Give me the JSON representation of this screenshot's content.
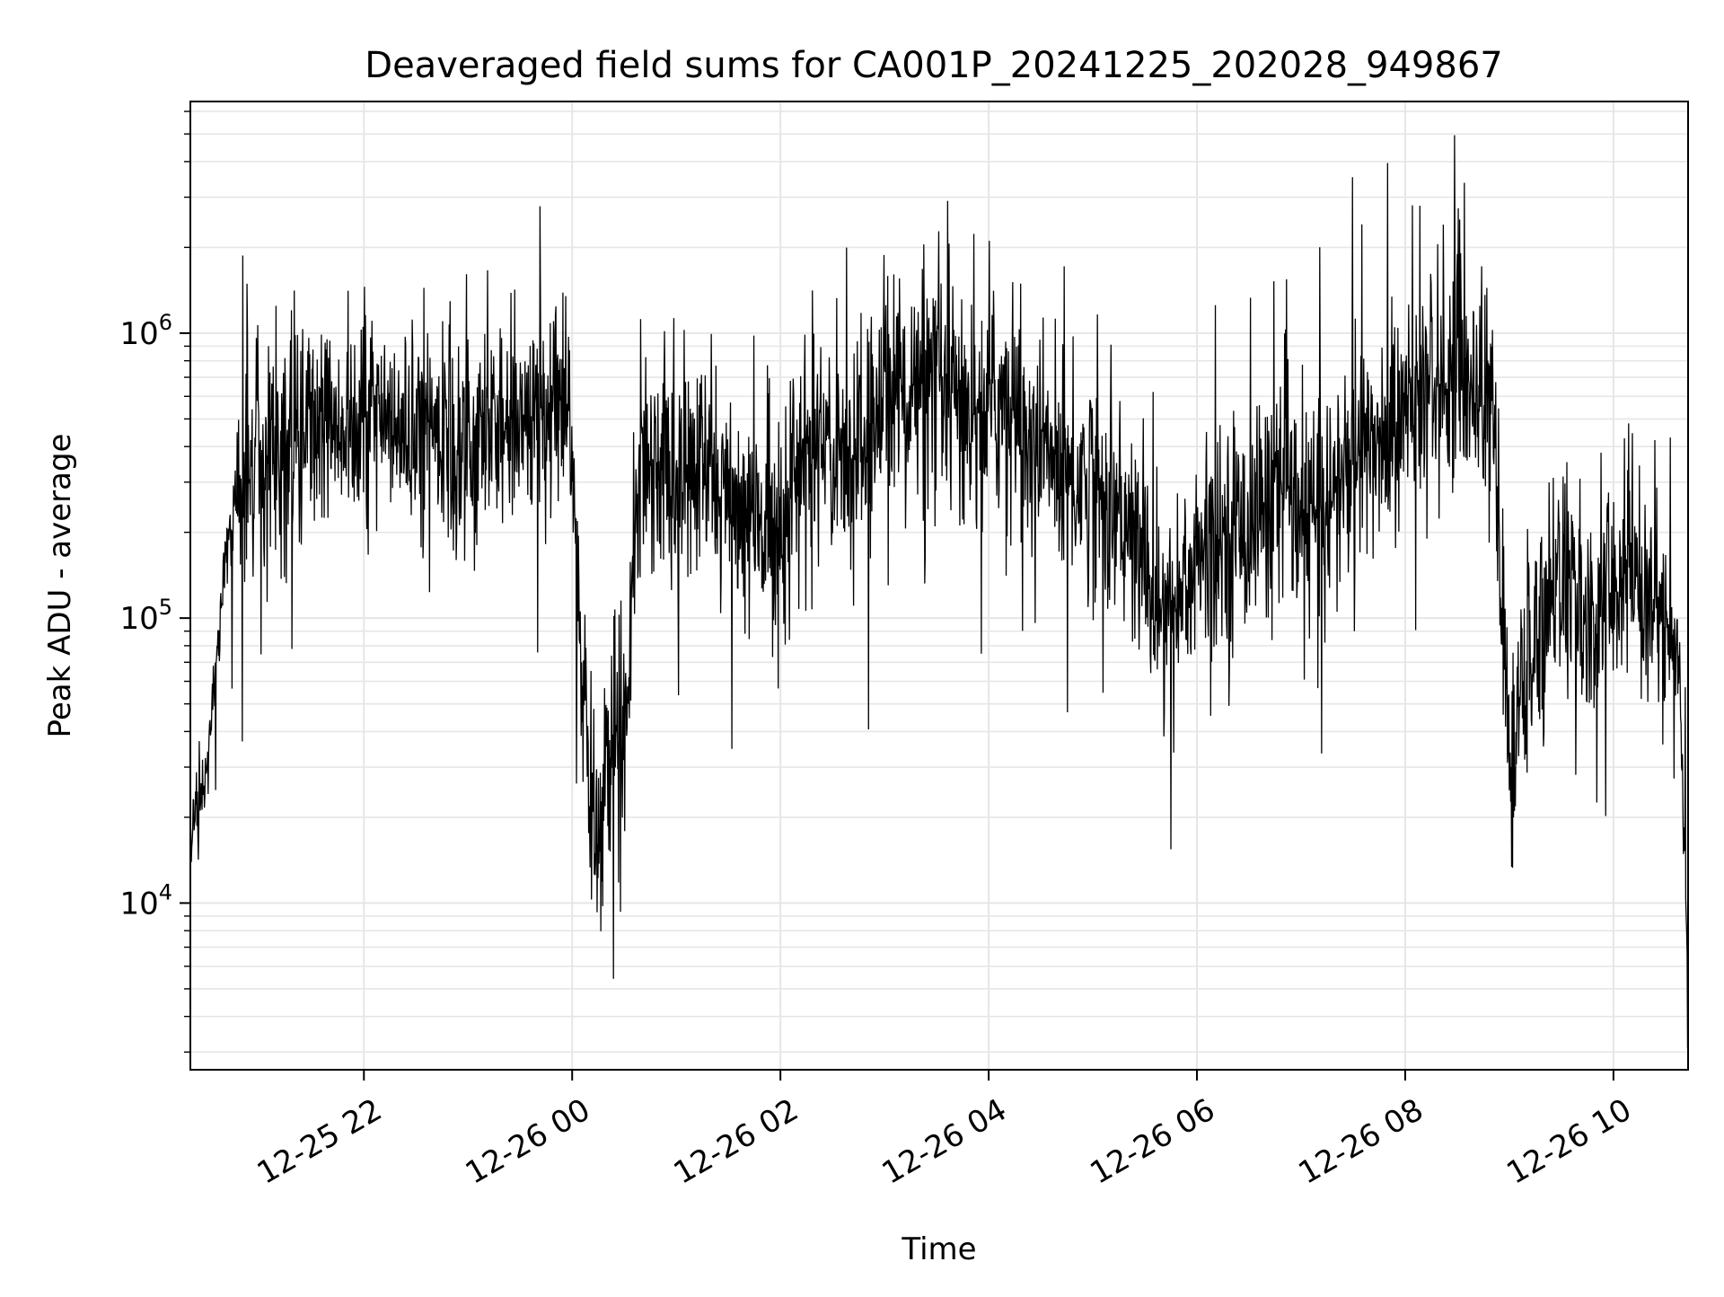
{
  "chart_data": {
    "type": "line",
    "title": "Deaveraged field sums for CA001P_20241225_202028_949867",
    "xlabel": "Time",
    "ylabel": "Peak ADU - average",
    "y_scale": "log",
    "ylim": [
      2600,
      6500000
    ],
    "xlim": [
      "2024-12-25 20:20",
      "2024-12-26 10:43"
    ],
    "grid": true,
    "line_color": "#000000",
    "grid_color": "#e6e6e6",
    "x_ticks": [
      {
        "t": "2024-12-25 22:00",
        "label": "12-25 22"
      },
      {
        "t": "2024-12-26 00:00",
        "label": "12-26 00"
      },
      {
        "t": "2024-12-26 02:00",
        "label": "12-26 02"
      },
      {
        "t": "2024-12-26 04:00",
        "label": "12-26 04"
      },
      {
        "t": "2024-12-26 06:00",
        "label": "12-26 06"
      },
      {
        "t": "2024-12-26 08:00",
        "label": "12-26 08"
      },
      {
        "t": "2024-12-26 10:00",
        "label": "12-26 10"
      }
    ],
    "y_ticks": [
      {
        "value": 10000,
        "base": "10",
        "exp": "4"
      },
      {
        "value": 100000,
        "base": "10",
        "exp": "5"
      },
      {
        "value": 1000000,
        "base": "10",
        "exp": "6"
      }
    ],
    "series": [
      {
        "x": [
          "2024-12-25 20:20",
          "2024-12-25 20:30",
          "2024-12-25 20:40",
          "2024-12-25 20:50",
          "2024-12-25 21:00",
          "2024-12-25 21:10",
          "2024-12-25 21:20",
          "2024-12-25 21:30",
          "2024-12-25 21:40",
          "2024-12-25 21:50",
          "2024-12-25 22:00",
          "2024-12-25 22:10",
          "2024-12-25 22:20",
          "2024-12-25 22:30",
          "2024-12-25 22:40",
          "2024-12-25 22:50",
          "2024-12-25 23:00",
          "2024-12-25 23:10",
          "2024-12-25 23:20",
          "2024-12-25 23:30",
          "2024-12-25 23:40",
          "2024-12-25 23:50",
          "2024-12-26 00:00",
          "2024-12-26 00:05",
          "2024-12-26 00:10",
          "2024-12-26 00:15",
          "2024-12-26 00:20",
          "2024-12-26 00:25",
          "2024-12-26 00:30",
          "2024-12-26 00:35",
          "2024-12-26 00:40",
          "2024-12-26 00:50",
          "2024-12-26 01:00",
          "2024-12-26 01:10",
          "2024-12-26 01:20",
          "2024-12-26 01:30",
          "2024-12-26 01:40",
          "2024-12-26 01:50",
          "2024-12-26 02:00",
          "2024-12-26 02:10",
          "2024-12-26 02:20",
          "2024-12-26 02:30",
          "2024-12-26 02:40",
          "2024-12-26 02:50",
          "2024-12-26 03:00",
          "2024-12-26 03:10",
          "2024-12-26 03:20",
          "2024-12-26 03:30",
          "2024-12-26 03:40",
          "2024-12-26 03:50",
          "2024-12-26 04:00",
          "2024-12-26 04:10",
          "2024-12-26 04:20",
          "2024-12-26 04:30",
          "2024-12-26 04:40",
          "2024-12-26 04:50",
          "2024-12-26 05:00",
          "2024-12-26 05:10",
          "2024-12-26 05:20",
          "2024-12-26 05:30",
          "2024-12-26 05:40",
          "2024-12-26 05:50",
          "2024-12-26 06:00",
          "2024-12-26 06:10",
          "2024-12-26 06:20",
          "2024-12-26 06:30",
          "2024-12-26 06:40",
          "2024-12-26 06:50",
          "2024-12-26 07:00",
          "2024-12-26 07:10",
          "2024-12-26 07:20",
          "2024-12-26 07:30",
          "2024-12-26 07:40",
          "2024-12-26 07:50",
          "2024-12-26 08:00",
          "2024-12-26 08:10",
          "2024-12-26 08:20",
          "2024-12-26 08:30",
          "2024-12-26 08:40",
          "2024-12-26 08:50",
          "2024-12-26 09:00",
          "2024-12-26 09:10",
          "2024-12-26 09:20",
          "2024-12-26 09:30",
          "2024-12-26 09:40",
          "2024-12-26 09:50",
          "2024-12-26 10:00",
          "2024-12-26 10:10",
          "2024-12-26 10:20",
          "2024-12-26 10:30",
          "2024-12-26 10:38",
          "2024-12-26 10:43"
        ],
        "y": [
          15000,
          32000,
          150000,
          350000,
          380000,
          450000,
          400000,
          480000,
          500000,
          520000,
          480000,
          450000,
          420000,
          440000,
          430000,
          400000,
          420000,
          450000,
          480000,
          470000,
          500000,
          520000,
          450000,
          60000,
          25000,
          18000,
          30000,
          40000,
          35000,
          200000,
          400000,
          350000,
          300000,
          320000,
          330000,
          250000,
          220000,
          200000,
          230000,
          320000,
          380000,
          400000,
          420000,
          350000,
          700000,
          650000,
          600000,
          620000,
          550000,
          500000,
          550000,
          600000,
          450000,
          380000,
          350000,
          300000,
          320000,
          250000,
          200000,
          150000,
          100000,
          120000,
          160000,
          180000,
          200000,
          220000,
          250000,
          280000,
          200000,
          250000,
          280000,
          350000,
          400000,
          450000,
          500000,
          600000,
          700000,
          800000,
          650000,
          600000,
          30000,
          60000,
          120000,
          150000,
          100000,
          90000,
          130000,
          150000,
          120000,
          100000,
          70000,
          4500
        ]
      }
    ]
  }
}
